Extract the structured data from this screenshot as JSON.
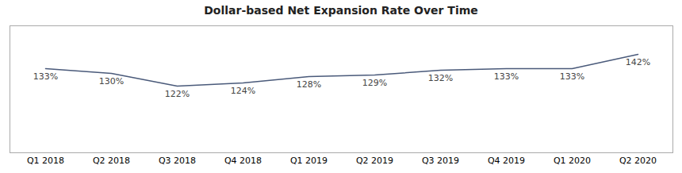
{
  "chart_data": {
    "type": "line",
    "title": "Dollar-based Net Expansion Rate Over Time",
    "categories": [
      "Q1 2018",
      "Q2 2018",
      "Q3 2018",
      "Q4 2018",
      "Q1 2019",
      "Q2 2019",
      "Q3 2019",
      "Q4 2019",
      "Q1 2020",
      "Q2 2020"
    ],
    "values": [
      133,
      130,
      122,
      124,
      128,
      129,
      132,
      133,
      133,
      142
    ],
    "value_labels": [
      "133%",
      "130%",
      "122%",
      "124%",
      "128%",
      "129%",
      "132%",
      "133%",
      "133%",
      "142%"
    ],
    "color": "#4a5a7a",
    "ylim": [
      80,
      160
    ],
    "data_labels": true,
    "tick_labels": "x"
  }
}
